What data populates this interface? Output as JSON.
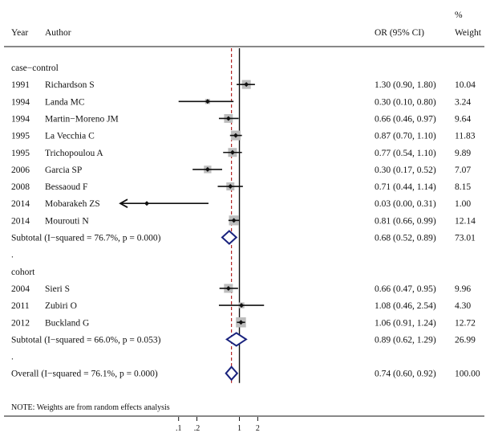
{
  "chart_data": {
    "type": "forest",
    "headers": {
      "year": "Year",
      "author": "Author",
      "or": "OR (95% CI)",
      "weight_pct": "%",
      "weight": "Weight"
    },
    "rows": [
      {
        "kind": "group",
        "label": "case−control"
      },
      {
        "kind": "study",
        "year": "1991",
        "author": "Richardson S",
        "or": 1.3,
        "lo": 0.9,
        "hi": 1.8,
        "or_text": "1.30 (0.90, 1.80)",
        "weight": 10.04,
        "weight_text": "10.04"
      },
      {
        "kind": "study",
        "year": "1994",
        "author": "Landa MC",
        "or": 0.3,
        "lo": 0.1,
        "hi": 0.8,
        "or_text": "0.30 (0.10, 0.80)",
        "weight": 3.24,
        "weight_text": "3.24"
      },
      {
        "kind": "study",
        "year": "1994",
        "author": "Martin−Moreno JM",
        "or": 0.66,
        "lo": 0.46,
        "hi": 0.97,
        "or_text": "0.66 (0.46, 0.97)",
        "weight": 9.64,
        "weight_text": "9.64"
      },
      {
        "kind": "study",
        "year": "1995",
        "author": "La Vecchia C",
        "or": 0.87,
        "lo": 0.7,
        "hi": 1.1,
        "or_text": "0.87 (0.70, 1.10)",
        "weight": 11.83,
        "weight_text": "11.83"
      },
      {
        "kind": "study",
        "year": "1995",
        "author": "Trichopoulou A",
        "or": 0.77,
        "lo": 0.54,
        "hi": 1.1,
        "or_text": "0.77 (0.54, 1.10)",
        "weight": 9.89,
        "weight_text": "9.89"
      },
      {
        "kind": "study",
        "year": "2006",
        "author": "Garcia SP",
        "or": 0.3,
        "lo": 0.17,
        "hi": 0.52,
        "or_text": "0.30 (0.17, 0.52)",
        "weight": 7.07,
        "weight_text": "7.07"
      },
      {
        "kind": "study",
        "year": "2008",
        "author": "Bessaoud F",
        "or": 0.71,
        "lo": 0.44,
        "hi": 1.14,
        "or_text": "0.71 (0.44, 1.14)",
        "weight": 8.15,
        "weight_text": "8.15"
      },
      {
        "kind": "study",
        "year": "2014",
        "author": "Mobarakeh ZS",
        "or": 0.03,
        "lo": 0.0,
        "hi": 0.31,
        "or_text": "0.03 (0.00, 0.31)",
        "weight": 1.0,
        "weight_text": "1.00",
        "arrow_left": true
      },
      {
        "kind": "study",
        "year": "2014",
        "author": "Mourouti N",
        "or": 0.81,
        "lo": 0.66,
        "hi": 0.99,
        "or_text": "0.81 (0.66, 0.99)",
        "weight": 12.14,
        "weight_text": "12.14"
      },
      {
        "kind": "subtotal",
        "label": "Subtotal  (I−squared = 76.7%, p = 0.000)",
        "or": 0.68,
        "lo": 0.52,
        "hi": 0.89,
        "or_text": "0.68 (0.52, 0.89)",
        "weight_text": "73.01"
      },
      {
        "kind": "dot",
        "label": "."
      },
      {
        "kind": "group",
        "label": "cohort"
      },
      {
        "kind": "study",
        "year": "2004",
        "author": "Sieri S",
        "or": 0.66,
        "lo": 0.47,
        "hi": 0.95,
        "or_text": "0.66 (0.47, 0.95)",
        "weight": 9.96,
        "weight_text": "9.96"
      },
      {
        "kind": "study",
        "year": "2011",
        "author": "Zubiri O",
        "or": 1.08,
        "lo": 0.46,
        "hi": 2.54,
        "or_text": "1.08 (0.46, 2.54)",
        "weight": 4.3,
        "weight_text": "4.30"
      },
      {
        "kind": "study",
        "year": "2012",
        "author": "Buckland G",
        "or": 1.06,
        "lo": 0.91,
        "hi": 1.24,
        "or_text": "1.06 (0.91, 1.24)",
        "weight": 12.72,
        "weight_text": "12.72"
      },
      {
        "kind": "subtotal",
        "label": "Subtotal  (I−squared = 66.0%, p = 0.053)",
        "or": 0.89,
        "lo": 0.62,
        "hi": 1.29,
        "or_text": "0.89 (0.62, 1.29)",
        "weight_text": "26.99"
      },
      {
        "kind": "dot",
        "label": "."
      },
      {
        "kind": "overall",
        "label": "Overall  (I−squared = 76.1%, p = 0.000)",
        "or": 0.74,
        "lo": 0.6,
        "hi": 0.92,
        "or_text": "0.74 (0.60, 0.92)",
        "weight_text": "100.00"
      }
    ],
    "note": "NOTE: Weights are from random effects analysis",
    "scale": "log",
    "null_value": 1,
    "overall_line": 0.74,
    "xlim": [
      0.011,
      2.6
    ],
    "ticks": [
      {
        "value": 0.1,
        "label": ".1"
      },
      {
        "value": 0.2,
        "label": ".2"
      },
      {
        "value": 1,
        "label": "1"
      },
      {
        "value": 2,
        "label": "2"
      }
    ],
    "colors": {
      "box": "#bdbdbd",
      "diamond": "#1a237e",
      "overall_line": "#b22222",
      "ink": "#111111"
    }
  }
}
